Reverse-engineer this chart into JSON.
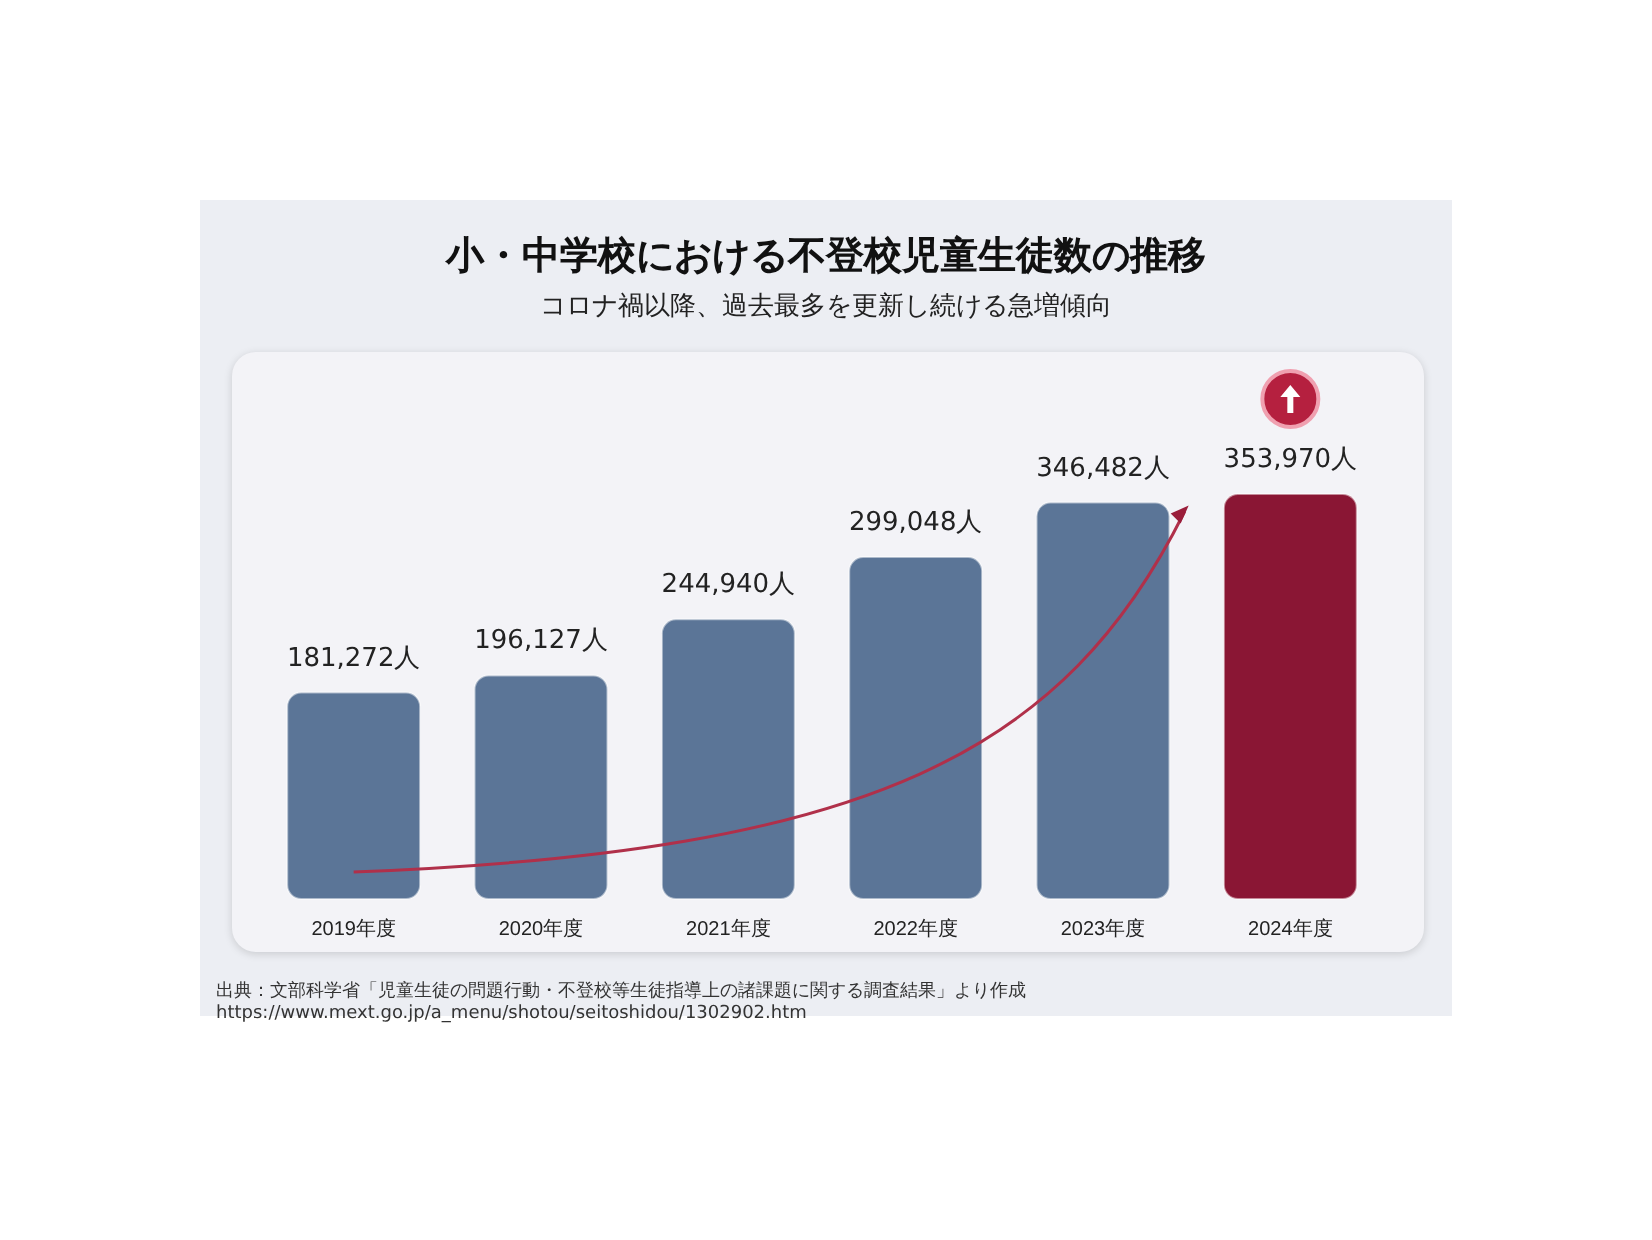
{
  "chart_data": {
    "type": "bar",
    "title": "小・中学校における不登校児童生徒数の推移",
    "subtitle": "コロナ禍以降、過去最多を更新し続ける急増傾向",
    "categories": [
      "2019年度",
      "2020年度",
      "2021年度",
      "2022年度",
      "2023年度",
      "2024年度"
    ],
    "values": [
      181272,
      196127,
      244940,
      299048,
      346482,
      353970
    ],
    "value_labels": [
      "181,272人",
      "196,127人",
      "244,940人",
      "299,048人",
      "346,482人",
      "353,970人"
    ],
    "colors": [
      "#5b7597",
      "#5b7597",
      "#5b7597",
      "#5b7597",
      "#5b7597",
      "#8a1634"
    ],
    "tick_labels": "x",
    "annotations": [
      "出典：文部科学省「児童生徒の問題行動・不登校等生徒指導上の諸課題に関する調査結果」より作成",
      "https://www.mext.go.jp/a_menu/shotou/seitoshidou/1302902.htm"
    ]
  }
}
